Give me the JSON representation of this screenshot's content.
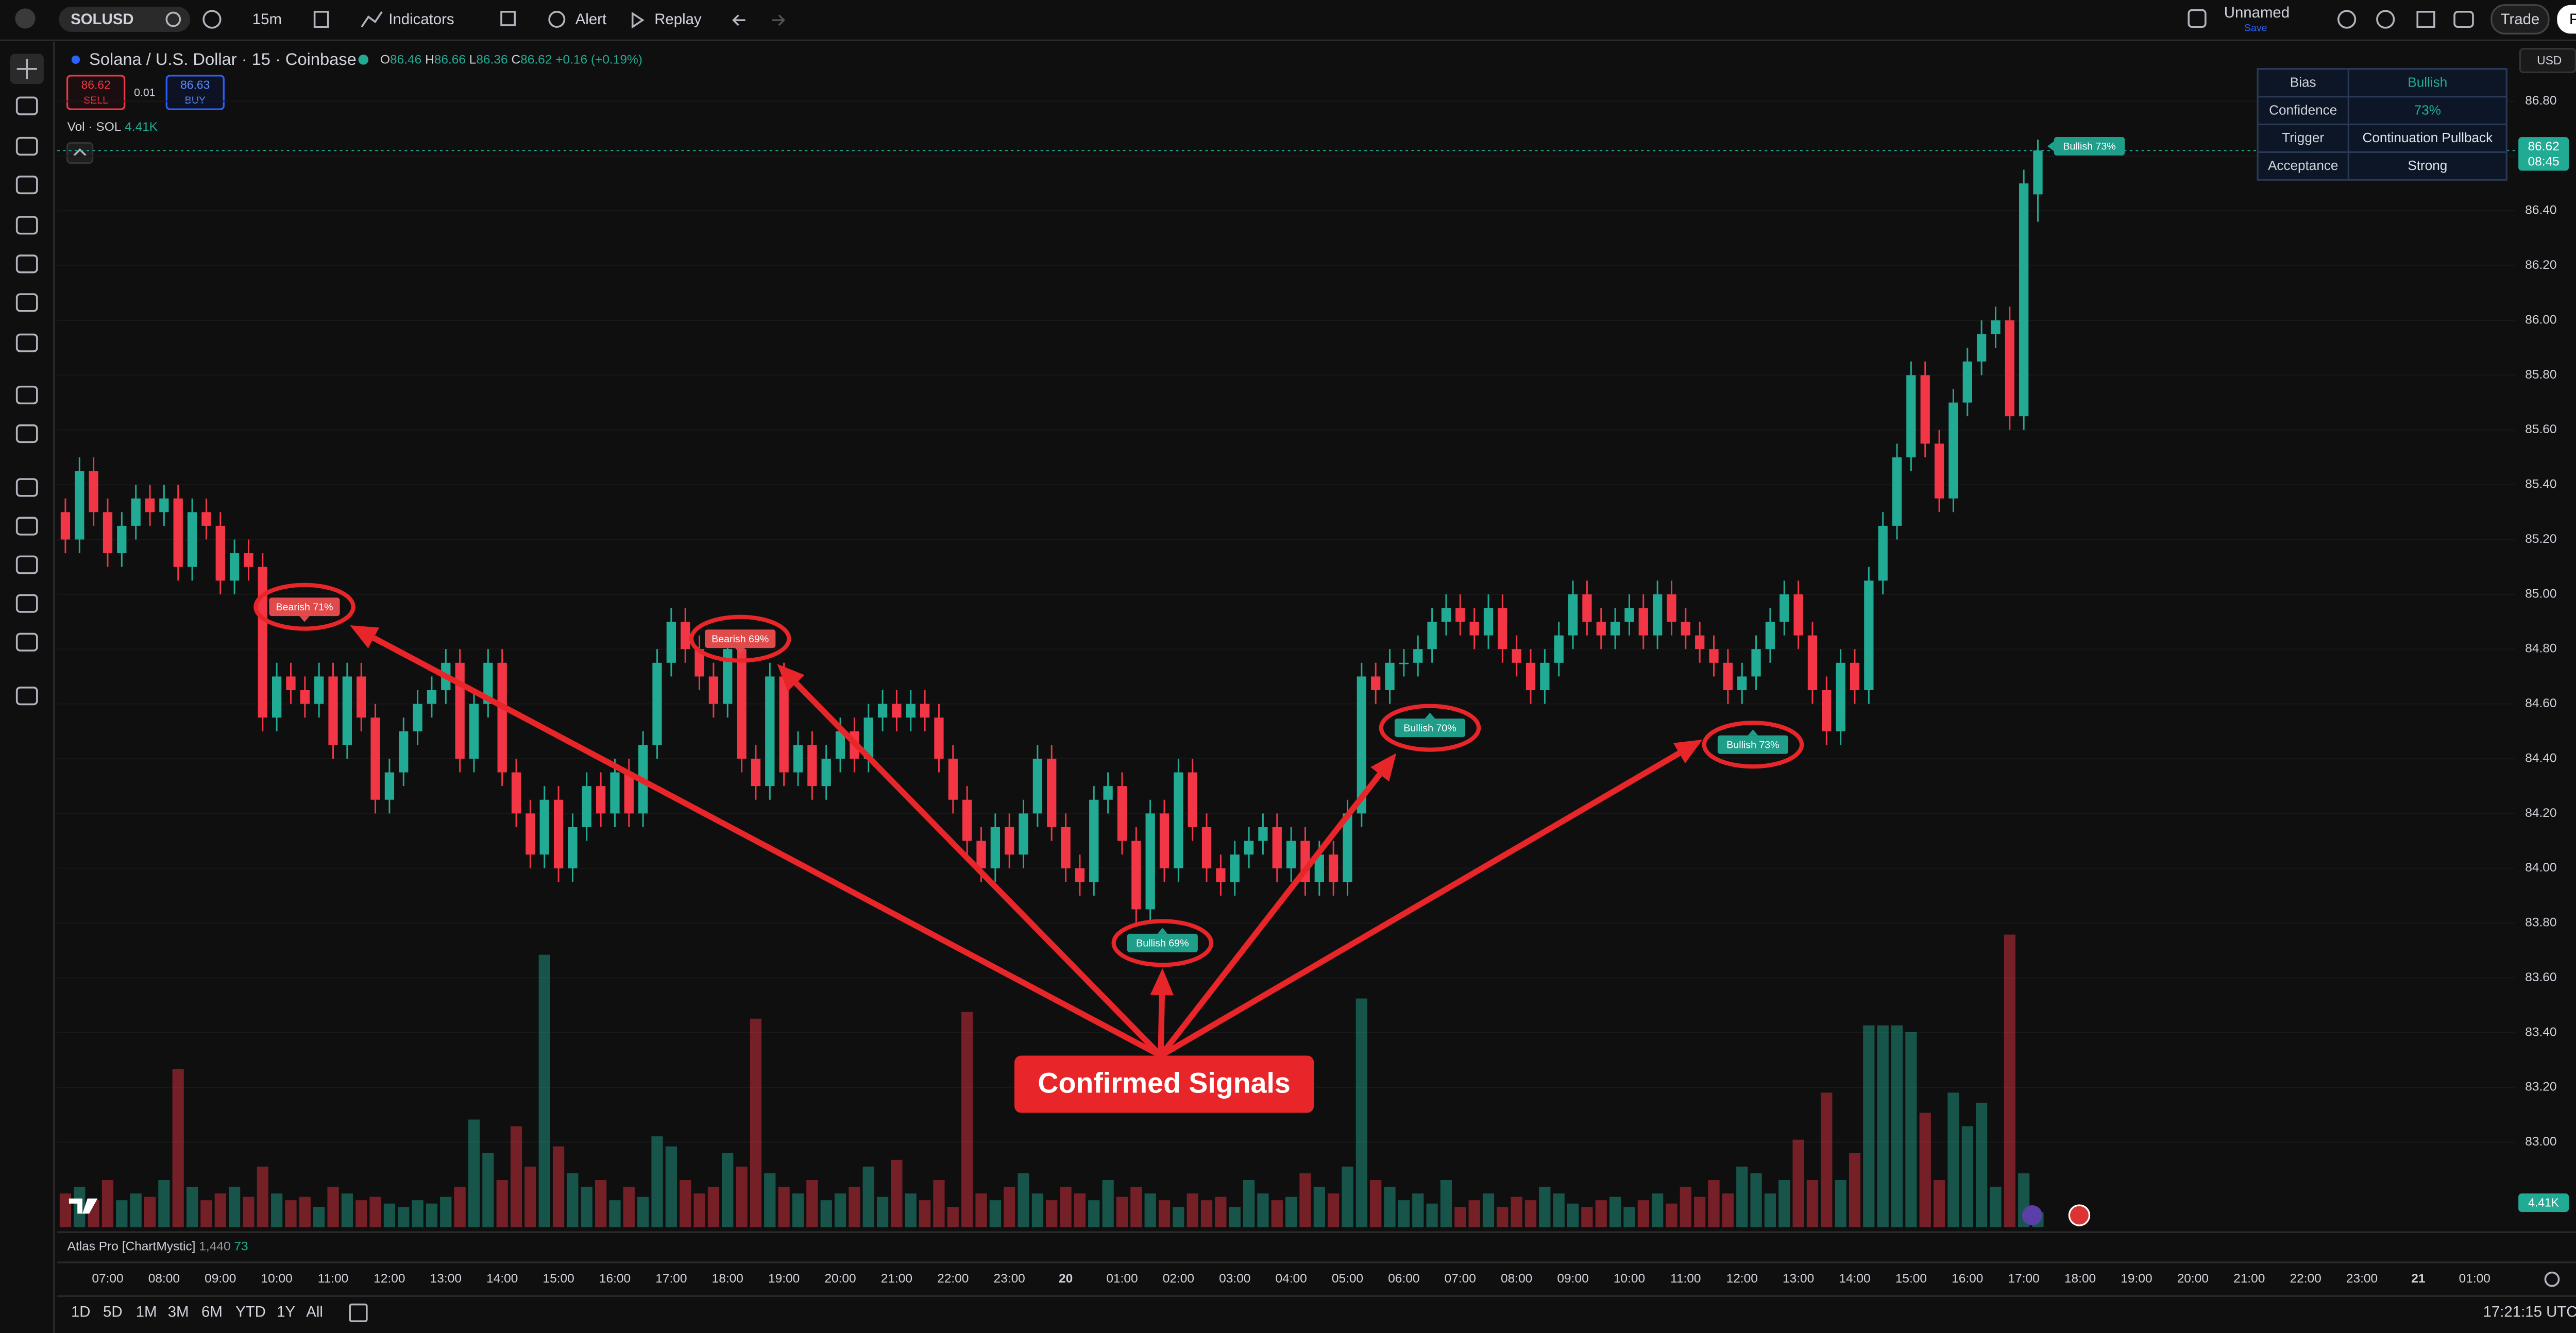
{
  "toolbar": {
    "symbol": "SOLUSD",
    "interval": "15m",
    "indicators": "Indicators",
    "alert": "Alert",
    "replay": "Replay",
    "layout_name": "Unnamed",
    "save": "Save",
    "trade": "Trade",
    "publish": "Publish"
  },
  "legend": {
    "title": "Solana / U.S. Dollar · 15 · Coinbase",
    "o_label": "O",
    "open": "86.46",
    "h_label": "H",
    "high": "86.66",
    "l_label": "L",
    "low": "86.36",
    "c_label": "C",
    "close": "86.62",
    "change": "+0.16 (+0.19%)",
    "sell_price": "86.62",
    "sell": "SELL",
    "spread": "0.01",
    "buy_price": "86.63",
    "buy": "BUY",
    "volume_label": "Vol · SOL",
    "volume": "4.41K"
  },
  "info_table": {
    "rows": [
      [
        "Bias",
        "Bullish"
      ],
      [
        "Confidence",
        "73%"
      ],
      [
        "Trigger",
        "Continuation Pullback"
      ],
      [
        "Acceptance",
        "Strong"
      ]
    ]
  },
  "currency": "USD",
  "chart_data": {
    "type": "candlestick",
    "up_color": "#22ab94",
    "down_color": "#f23645",
    "grid": true,
    "ylim": [
      82.69,
      87.01
    ],
    "yticks": [
      {
        "value": 83.0,
        "label": "83.00"
      },
      {
        "value": 83.2,
        "label": "83.20"
      },
      {
        "value": 83.4,
        "label": "83.40"
      },
      {
        "value": 83.6,
        "label": "83.60"
      },
      {
        "value": 83.8,
        "label": "83.80"
      },
      {
        "value": 84.0,
        "label": "84.00"
      },
      {
        "value": 84.2,
        "label": "84.20"
      },
      {
        "value": 84.4,
        "label": "84.40"
      },
      {
        "value": 84.6,
        "label": "84.60"
      },
      {
        "value": 84.8,
        "label": "84.80"
      },
      {
        "value": 85.0,
        "label": "85.00"
      },
      {
        "value": 85.2,
        "label": "85.20"
      },
      {
        "value": 85.4,
        "label": "85.40"
      },
      {
        "value": 85.6,
        "label": "85.60"
      },
      {
        "value": 85.8,
        "label": "85.80"
      },
      {
        "value": 86.0,
        "label": "86.00"
      },
      {
        "value": 86.2,
        "label": "86.20"
      },
      {
        "value": 86.4,
        "label": "86.40"
      },
      {
        "value": 86.6,
        "label": "86.60"
      },
      {
        "value": 86.8,
        "label": "86.80"
      }
    ],
    "xtick_labels": [
      "07:00",
      "08:00",
      "09:00",
      "10:00",
      "11:00",
      "12:00",
      "13:00",
      "14:00",
      "15:00",
      "16:00",
      "17:00",
      "18:00",
      "19:00",
      "20:00",
      "21:00",
      "22:00",
      "23:00",
      "20",
      "01:00",
      "02:00",
      "03:00",
      "04:00",
      "05:00",
      "06:00",
      "07:00",
      "08:00",
      "09:00",
      "10:00",
      "11:00",
      "12:00",
      "13:00",
      "14:00",
      "15:00",
      "16:00",
      "17:00",
      "18:00",
      "19:00",
      "20:00",
      "21:00",
      "22:00",
      "23:00",
      "21",
      "01:00"
    ],
    "open": [
      85.3,
      85.2,
      85.45,
      85.3,
      85.15,
      85.25,
      85.35,
      85.3,
      85.35,
      85.1,
      85.3,
      85.25,
      85.05,
      85.15,
      85.1,
      84.55,
      84.7,
      84.65,
      84.6,
      84.7,
      84.45,
      84.7,
      84.55,
      84.25,
      84.35,
      84.5,
      84.6,
      84.65,
      84.75,
      84.4,
      84.6,
      84.75,
      84.35,
      84.2,
      84.05,
      84.25,
      84.0,
      84.15,
      84.3,
      84.2,
      84.35,
      84.2,
      84.45,
      84.75,
      84.9,
      84.8,
      84.7,
      84.6,
      84.8,
      84.4,
      84.3,
      84.7,
      84.35,
      84.45,
      84.3,
      84.4,
      84.5,
      84.4,
      84.55,
      84.6,
      84.55,
      84.6,
      84.55,
      84.4,
      84.25,
      84.1,
      84.0,
      84.15,
      84.05,
      84.2,
      84.4,
      84.15,
      84.0,
      83.95,
      84.25,
      84.3,
      84.1,
      83.85,
      84.2,
      84.0,
      84.35,
      84.15,
      84.0,
      83.95,
      84.05,
      84.1,
      84.15,
      84.0,
      84.1,
      83.95,
      84.05,
      83.95,
      84.2,
      84.7,
      84.65,
      84.75,
      84.75,
      84.8,
      84.9,
      84.95,
      84.9,
      84.85,
      84.95,
      84.8,
      84.75,
      84.65,
      84.75,
      84.85,
      85.0,
      84.9,
      84.85,
      84.9,
      84.95,
      84.85,
      85.0,
      84.9,
      84.85,
      84.8,
      84.75,
      84.65,
      84.7,
      84.8,
      84.9,
      85.0,
      84.85,
      84.65,
      84.5,
      84.75,
      84.65,
      85.05,
      85.25,
      85.5,
      85.8,
      85.55,
      85.35,
      85.7,
      85.85,
      85.95,
      86.0,
      85.65,
      86.46
    ],
    "high": [
      85.35,
      85.5,
      85.5,
      85.35,
      85.3,
      85.4,
      85.4,
      85.4,
      85.4,
      85.35,
      85.35,
      85.3,
      85.2,
      85.2,
      85.15,
      84.75,
      84.75,
      84.7,
      84.75,
      84.75,
      84.75,
      84.75,
      84.6,
      84.4,
      84.55,
      84.65,
      84.7,
      84.8,
      84.8,
      84.65,
      84.8,
      84.8,
      84.4,
      84.25,
      84.3,
      84.3,
      84.2,
      84.35,
      84.35,
      84.4,
      84.4,
      84.5,
      84.8,
      84.95,
      84.95,
      84.85,
      84.75,
      84.85,
      84.85,
      84.45,
      84.75,
      84.75,
      84.5,
      84.5,
      84.45,
      84.55,
      84.55,
      84.6,
      84.65,
      84.65,
      84.65,
      84.65,
      84.6,
      84.45,
      84.3,
      84.15,
      84.2,
      84.2,
      84.25,
      84.45,
      84.45,
      84.2,
      84.05,
      84.3,
      84.35,
      84.35,
      84.15,
      84.25,
      84.25,
      84.4,
      84.4,
      84.2,
      84.05,
      84.1,
      84.15,
      84.2,
      84.2,
      84.15,
      84.15,
      84.1,
      84.1,
      84.25,
      84.75,
      84.75,
      84.8,
      84.8,
      84.85,
      84.95,
      85.0,
      85.0,
      84.95,
      85.0,
      85.0,
      84.85,
      84.8,
      84.8,
      84.9,
      85.05,
      85.05,
      84.95,
      84.95,
      85.0,
      85.0,
      85.05,
      85.05,
      84.95,
      84.9,
      84.85,
      84.8,
      84.75,
      84.85,
      84.95,
      85.05,
      85.05,
      84.9,
      84.7,
      84.8,
      84.8,
      85.1,
      85.3,
      85.55,
      85.85,
      85.85,
      85.6,
      85.75,
      85.9,
      86.0,
      86.05,
      86.05,
      86.55,
      86.66
    ],
    "low": [
      85.15,
      85.15,
      85.25,
      85.1,
      85.1,
      85.2,
      85.25,
      85.25,
      85.05,
      85.05,
      85.2,
      85.0,
      85.0,
      85.05,
      84.5,
      84.5,
      84.6,
      84.55,
      84.55,
      84.4,
      84.4,
      84.5,
      84.2,
      84.2,
      84.3,
      84.45,
      84.55,
      84.6,
      84.35,
      84.35,
      84.55,
      84.3,
      84.15,
      84.0,
      84.0,
      83.95,
      83.95,
      84.1,
      84.15,
      84.15,
      84.15,
      84.15,
      84.4,
      84.7,
      84.75,
      84.65,
      84.55,
      84.55,
      84.35,
      84.25,
      84.25,
      84.3,
      84.3,
      84.25,
      84.25,
      84.35,
      84.35,
      84.35,
      84.5,
      84.5,
      84.5,
      84.5,
      84.35,
      84.2,
      84.05,
      83.95,
      83.95,
      84.0,
      84.0,
      84.15,
      84.1,
      83.95,
      83.9,
      83.9,
      84.2,
      84.05,
      83.8,
      83.8,
      83.95,
      83.95,
      84.1,
      83.95,
      83.9,
      83.9,
      84.0,
      84.05,
      83.95,
      83.95,
      83.9,
      83.9,
      83.9,
      83.9,
      84.15,
      84.6,
      84.6,
      84.7,
      84.7,
      84.75,
      84.85,
      84.85,
      84.8,
      84.8,
      84.75,
      84.7,
      84.6,
      84.6,
      84.7,
      84.8,
      84.85,
      84.8,
      84.8,
      84.85,
      84.8,
      84.8,
      84.85,
      84.8,
      84.75,
      84.7,
      84.6,
      84.6,
      84.65,
      84.75,
      84.85,
      84.8,
      84.6,
      84.45,
      84.45,
      84.6,
      84.6,
      85.0,
      85.2,
      85.45,
      85.5,
      85.3,
      85.3,
      85.65,
      85.8,
      85.9,
      85.6,
      85.6,
      86.36
    ],
    "close": [
      85.2,
      85.45,
      85.3,
      85.15,
      85.25,
      85.35,
      85.3,
      85.35,
      85.1,
      85.3,
      85.25,
      85.05,
      85.15,
      85.1,
      84.55,
      84.7,
      84.65,
      84.6,
      84.7,
      84.45,
      84.7,
      84.55,
      84.25,
      84.35,
      84.5,
      84.6,
      84.65,
      84.75,
      84.4,
      84.6,
      84.75,
      84.35,
      84.2,
      84.05,
      84.25,
      84.0,
      84.15,
      84.3,
      84.2,
      84.35,
      84.2,
      84.45,
      84.75,
      84.9,
      84.8,
      84.7,
      84.6,
      84.8,
      84.4,
      84.3,
      84.7,
      84.35,
      84.45,
      84.3,
      84.4,
      84.5,
      84.4,
      84.55,
      84.6,
      84.55,
      84.6,
      84.55,
      84.4,
      84.25,
      84.1,
      84.0,
      84.15,
      84.05,
      84.2,
      84.4,
      84.15,
      84.0,
      83.95,
      84.25,
      84.3,
      84.1,
      83.85,
      84.2,
      84.0,
      84.35,
      84.15,
      84.0,
      83.95,
      84.05,
      84.1,
      84.15,
      84.0,
      84.1,
      83.95,
      84.05,
      83.95,
      84.2,
      84.7,
      84.65,
      84.75,
      84.75,
      84.8,
      84.9,
      84.95,
      84.9,
      84.85,
      84.95,
      84.8,
      84.75,
      84.65,
      84.75,
      84.85,
      85.0,
      84.9,
      84.85,
      84.9,
      84.95,
      84.85,
      85.0,
      84.9,
      84.85,
      84.8,
      84.75,
      84.65,
      84.7,
      84.8,
      84.9,
      85.0,
      84.85,
      84.65,
      84.5,
      84.75,
      84.65,
      85.05,
      85.25,
      85.5,
      85.8,
      85.55,
      85.35,
      85.7,
      85.85,
      85.95,
      86.0,
      85.65,
      86.5,
      86.62
    ],
    "vol_ylim": [
      0,
      150
    ],
    "volume": [
      10,
      12,
      8,
      14,
      8,
      10,
      9,
      14,
      47,
      12,
      8,
      10,
      12,
      9,
      18,
      10,
      8,
      9,
      6,
      12,
      10,
      8,
      9,
      7,
      6,
      8,
      7,
      9,
      12,
      32,
      22,
      14,
      30,
      18,
      81,
      24,
      16,
      12,
      14,
      8,
      12,
      9,
      27,
      24,
      14,
      10,
      12,
      22,
      18,
      62,
      16,
      12,
      10,
      14,
      8,
      10,
      12,
      18,
      9,
      20,
      10,
      8,
      14,
      6,
      64,
      10,
      8,
      12,
      16,
      10,
      8,
      12,
      10,
      8,
      14,
      9,
      12,
      10,
      8,
      6,
      10,
      8,
      9,
      6,
      14,
      10,
      8,
      9,
      16,
      12,
      10,
      18,
      68,
      14,
      12,
      8,
      10,
      7,
      14,
      6,
      8,
      10,
      6,
      9,
      8,
      12,
      10,
      7,
      6,
      8,
      9,
      6,
      8,
      10,
      7,
      12,
      9,
      14,
      10,
      18,
      16,
      10,
      14,
      26,
      14,
      40,
      14,
      22,
      60,
      60,
      60,
      58,
      34,
      14,
      40,
      30,
      37,
      12,
      87,
      16,
      4.41
    ],
    "countdown": "08:45",
    "signals": [
      {
        "text": "Bearish 71%",
        "color": "#e04a4a"
      },
      {
        "text": "Bearish 69%",
        "color": "#e04a4a"
      },
      {
        "text": "Bullish 69%",
        "color": "#1f9e8a"
      },
      {
        "text": "Bullish 70%",
        "color": "#1f9e8a"
      },
      {
        "text": "Bullish 73%",
        "color": "#1f9e8a"
      },
      {
        "text": "Bullish 73%",
        "color": "#1f9e8a"
      }
    ],
    "callout": "Confirmed Signals"
  },
  "indicator": {
    "name": "Atlas Pro [ChartMystic]",
    "param": "1,440",
    "value": "73"
  },
  "ranges": [
    "1D",
    "5D",
    "1M",
    "3M",
    "6M",
    "YTD",
    "1Y",
    "All"
  ],
  "clock": "17:21:15 UTC"
}
